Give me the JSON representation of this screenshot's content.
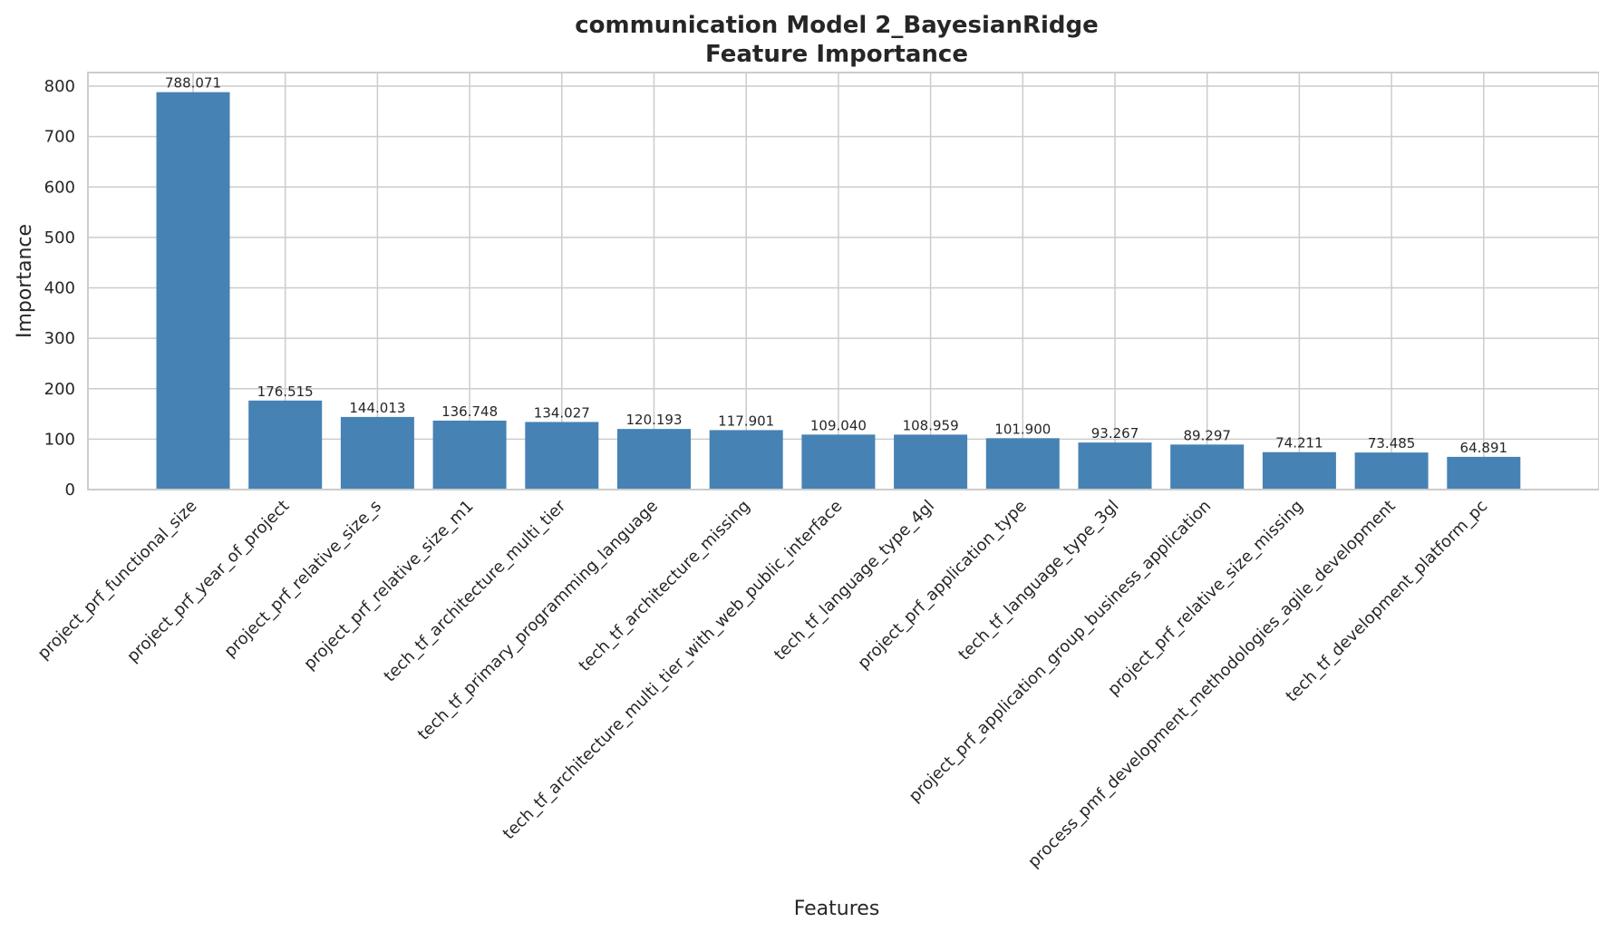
{
  "colors": {
    "bar": "#4682b4",
    "grid": "#cccccc",
    "text": "#262626"
  },
  "chart_data": {
    "type": "bar",
    "title": "communication Model 2_BayesianRidge",
    "subtitle": "Feature Importance",
    "xlabel": "Features",
    "ylabel": "Importance",
    "ylim": [
      0,
      827
    ],
    "yticks": [
      0,
      100,
      200,
      300,
      400,
      500,
      600,
      700,
      800
    ],
    "grid": true,
    "categories": [
      "project_prf_functional_size",
      "project_prf_year_of_project",
      "project_prf_relative_size_s",
      "project_prf_relative_size_m1",
      "tech_tf_architecture_multi_tier",
      "tech_tf_primary_programming_language",
      "tech_tf_architecture_missing",
      "tech_tf_architecture_multi_tier_with_web_public_interface",
      "tech_tf_language_type_4gl",
      "project_prf_application_type",
      "tech_tf_language_type_3gl",
      "project_prf_application_group_business_application",
      "project_prf_relative_size_missing",
      "process_pmf_development_methodologies_agile_development",
      "tech_tf_development_platform_pc"
    ],
    "values": [
      788.071,
      176.515,
      144.013,
      136.748,
      134.027,
      120.193,
      117.901,
      109.04,
      108.959,
      101.9,
      93.267,
      89.297,
      74.211,
      73.485,
      64.891
    ],
    "value_labels": [
      "788.071",
      "176.515",
      "144.013",
      "136.748",
      "134.027",
      "120.193",
      "117.901",
      "109.040",
      "108.959",
      "101.900",
      "93.267",
      "89.297",
      "74.211",
      "73.485",
      "64.891"
    ]
  }
}
